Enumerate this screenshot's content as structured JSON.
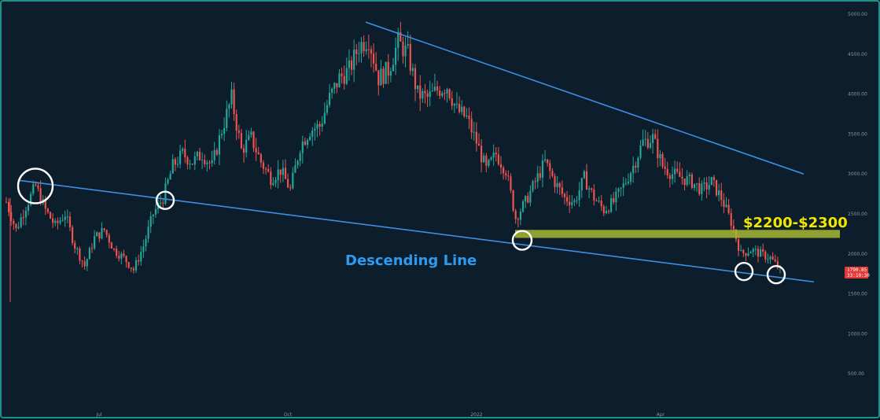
{
  "chart_data": {
    "type": "candlestick",
    "title": "",
    "xlabel": "",
    "ylabel": "",
    "ylim": [
      0,
      5000
    ],
    "y_ticks": [
      "5000.00",
      "4500.00",
      "4000.00",
      "3500.00",
      "3000.00",
      "2500.00",
      "2000.00",
      "1500.00",
      "1000.00",
      "500.00"
    ],
    "y_tick_values": [
      5000,
      4500,
      4000,
      3500,
      3000,
      2500,
      2000,
      1500,
      1000,
      500
    ],
    "x_ticks": [
      "Jul",
      "Oct",
      "2022",
      "Apr"
    ],
    "grid": false,
    "colors": {
      "up": "#26a69a",
      "down": "#ef5350",
      "line": "#3d8fe0",
      "zone": "#a8b832",
      "circle": "#ffffff",
      "desc_text": "#2e9bf0",
      "zone_text": "#f3e600",
      "tag_bg": "#e53935"
    },
    "price_path": [
      {
        "week": 0,
        "price": 2650
      },
      {
        "week": 1,
        "price": 2300
      },
      {
        "week": 2,
        "price": 2600
      },
      {
        "week": 3,
        "price": 2850
      },
      {
        "week": 4,
        "price": 2550
      },
      {
        "week": 5,
        "price": 2350
      },
      {
        "week": 6,
        "price": 2500
      },
      {
        "week": 7,
        "price": 2100
      },
      {
        "week": 8,
        "price": 1850
      },
      {
        "week": 9,
        "price": 2200
      },
      {
        "week": 10,
        "price": 2300
      },
      {
        "week": 11,
        "price": 2050
      },
      {
        "week": 12,
        "price": 1950
      },
      {
        "week": 13,
        "price": 1800
      },
      {
        "week": 14,
        "price": 2100
      },
      {
        "week": 15,
        "price": 2500
      },
      {
        "week": 16,
        "price": 2700
      },
      {
        "week": 17,
        "price": 3100
      },
      {
        "week": 18,
        "price": 3250
      },
      {
        "week": 19,
        "price": 3150
      },
      {
        "week": 20,
        "price": 3250
      },
      {
        "week": 21,
        "price": 3100
      },
      {
        "week": 22,
        "price": 3550
      },
      {
        "week": 23,
        "price": 3950
      },
      {
        "week": 24,
        "price": 3300
      },
      {
        "week": 25,
        "price": 3450
      },
      {
        "week": 26,
        "price": 3150
      },
      {
        "week": 27,
        "price": 2950
      },
      {
        "week": 28,
        "price": 3050
      },
      {
        "week": 29,
        "price": 2800
      },
      {
        "week": 30,
        "price": 3350
      },
      {
        "week": 31,
        "price": 3550
      },
      {
        "week": 32,
        "price": 3600
      },
      {
        "week": 33,
        "price": 3950
      },
      {
        "week": 34,
        "price": 4200
      },
      {
        "week": 35,
        "price": 4300
      },
      {
        "week": 36,
        "price": 4600
      },
      {
        "week": 37,
        "price": 4700
      },
      {
        "week": 38,
        "price": 4200
      },
      {
        "week": 39,
        "price": 4300
      },
      {
        "week": 40,
        "price": 4650
      },
      {
        "week": 41,
        "price": 4500
      },
      {
        "week": 42,
        "price": 4000
      },
      {
        "week": 43,
        "price": 3950
      },
      {
        "week": 44,
        "price": 4050
      },
      {
        "week": 45,
        "price": 4100
      },
      {
        "week": 46,
        "price": 3800
      },
      {
        "week": 47,
        "price": 3700
      },
      {
        "week": 48,
        "price": 3400
      },
      {
        "week": 49,
        "price": 3050
      },
      {
        "week": 50,
        "price": 3250
      },
      {
        "week": 51,
        "price": 3050
      },
      {
        "week": 52,
        "price": 2450
      },
      {
        "week": 53,
        "price": 2650
      },
      {
        "week": 54,
        "price": 2900
      },
      {
        "week": 55,
        "price": 3150
      },
      {
        "week": 56,
        "price": 2900
      },
      {
        "week": 57,
        "price": 2700
      },
      {
        "week": 58,
        "price": 2650
      },
      {
        "week": 59,
        "price": 2950
      },
      {
        "week": 60,
        "price": 2700
      },
      {
        "week": 61,
        "price": 2550
      },
      {
        "week": 62,
        "price": 2650
      },
      {
        "week": 63,
        "price": 2850
      },
      {
        "week": 64,
        "price": 3100
      },
      {
        "week": 65,
        "price": 3400
      },
      {
        "week": 66,
        "price": 3450
      },
      {
        "week": 67,
        "price": 3100
      },
      {
        "week": 68,
        "price": 3000
      },
      {
        "week": 69,
        "price": 2950
      },
      {
        "week": 70,
        "price": 2900
      },
      {
        "week": 71,
        "price": 2800
      },
      {
        "week": 72,
        "price": 2900
      },
      {
        "week": 73,
        "price": 2700
      },
      {
        "week": 74,
        "price": 2400
      },
      {
        "week": 75,
        "price": 2000
      },
      {
        "week": 76,
        "price": 2050
      },
      {
        "week": 77,
        "price": 2000
      },
      {
        "week": 78,
        "price": 1950
      },
      {
        "week": 79,
        "price": 1800
      }
    ],
    "last_price": "1790.85",
    "countdown": "33:10:30",
    "support_zone": {
      "low": 2200,
      "high": 2300,
      "label": "$2200-$2300"
    },
    "descending_line": {
      "label": "Descending Line",
      "from_price": 2920,
      "to_price": 1650
    },
    "upper_trendline": {
      "from_price": 4900,
      "to_price": 3000
    }
  }
}
